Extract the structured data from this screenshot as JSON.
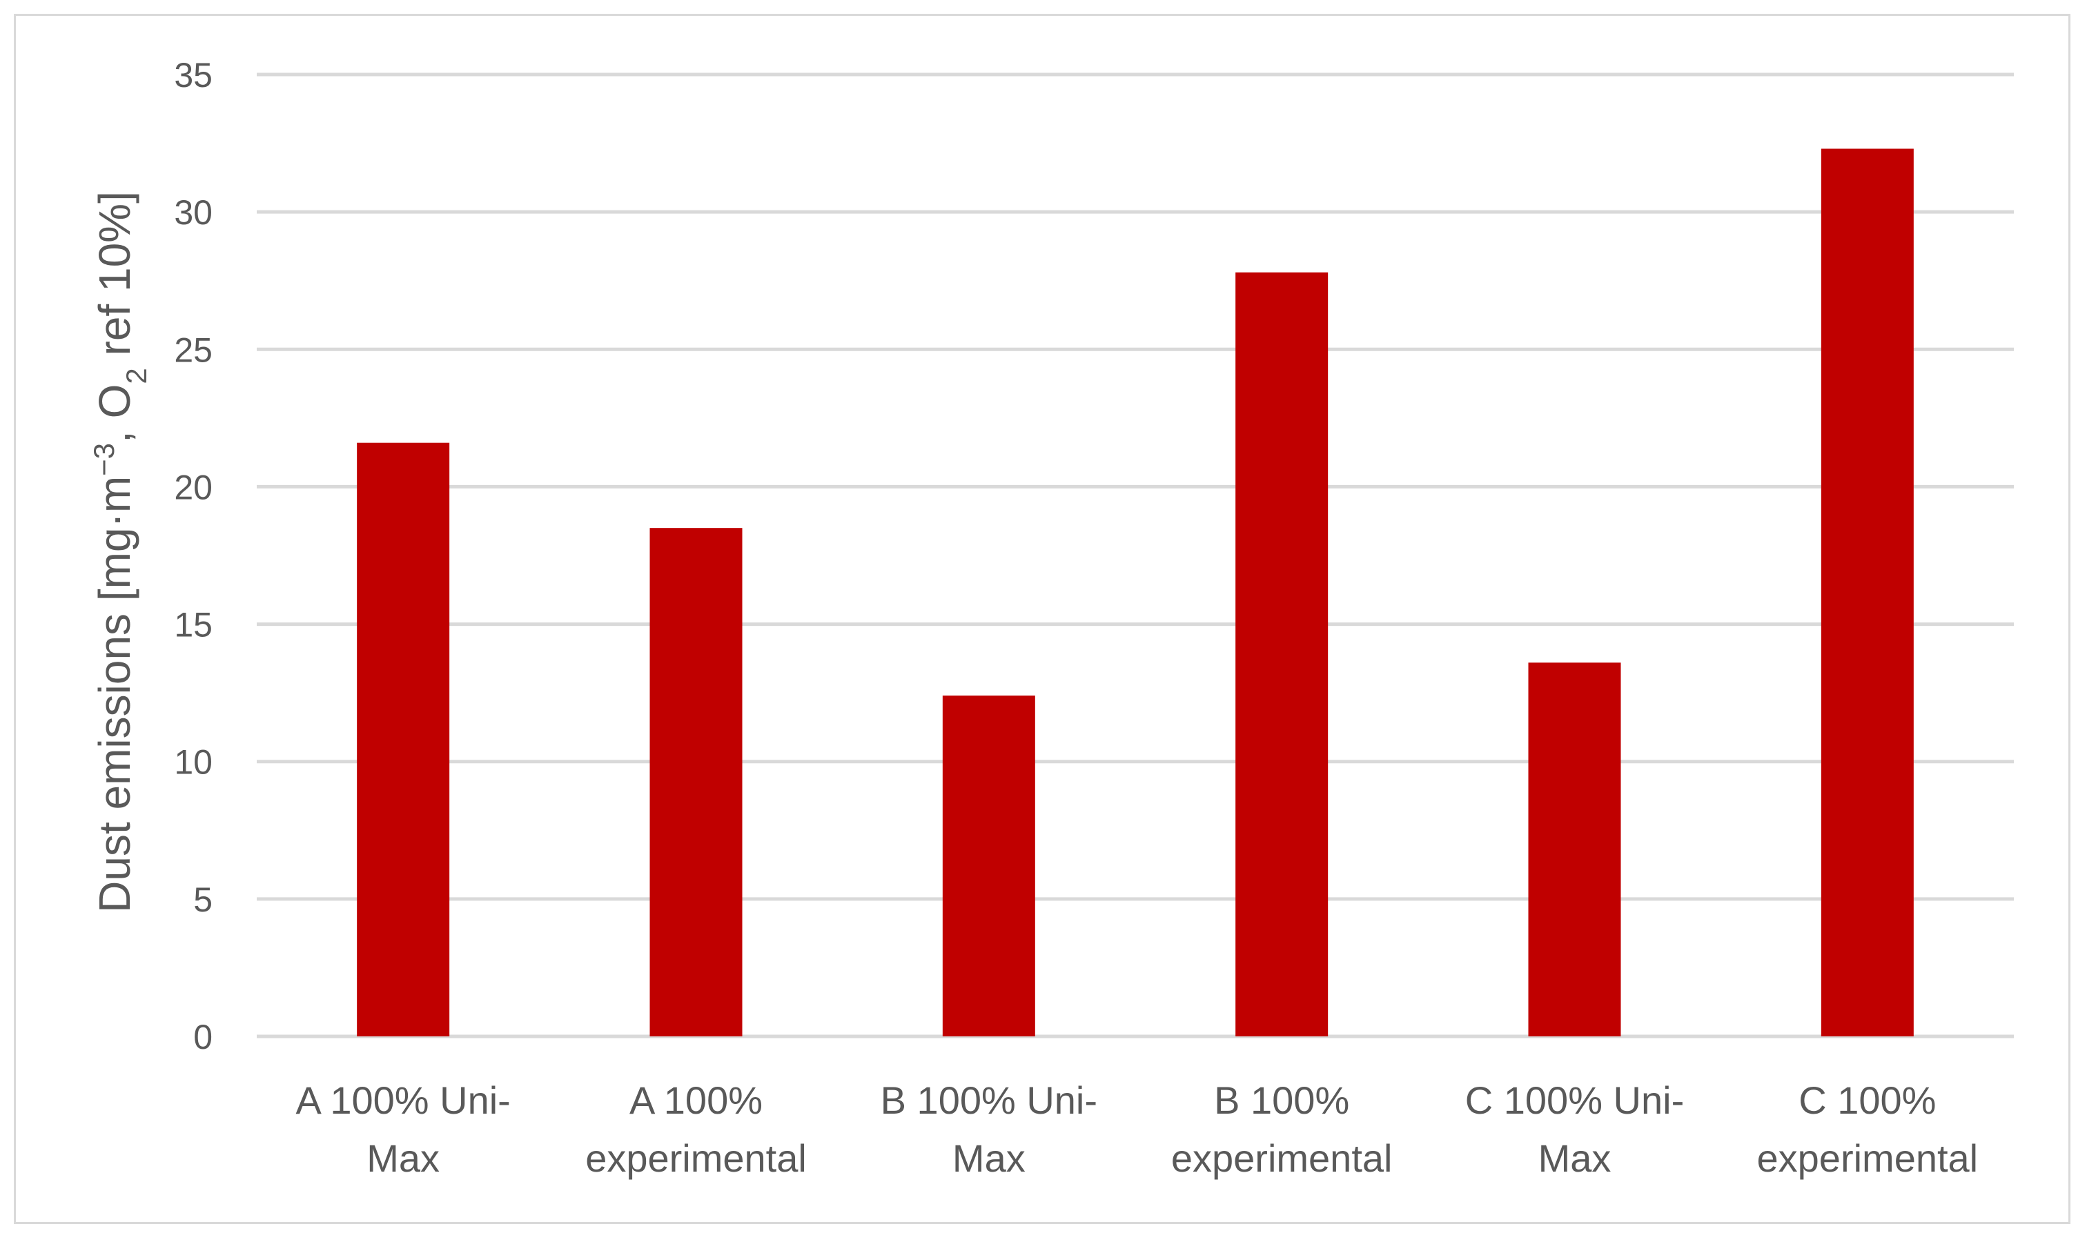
{
  "chart_data": {
    "type": "bar",
    "categories": [
      [
        "A 100% Uni-",
        "Max"
      ],
      [
        "A 100%",
        "experimental"
      ],
      [
        "B 100% Uni-",
        "Max"
      ],
      [
        "B 100%",
        "experimental"
      ],
      [
        "C 100% Uni-",
        "Max"
      ],
      [
        "C 100%",
        "experimental"
      ]
    ],
    "values": [
      21.6,
      18.5,
      12.4,
      27.8,
      13.6,
      32.3
    ],
    "ylabel": {
      "prefix": "Dust emissions [mg·m",
      "sup": "−3",
      "mid": ", O",
      "sub": "2",
      "suffix": " ref 10%]"
    },
    "ylim": [
      0,
      35
    ],
    "yticks": [
      0,
      5,
      10,
      15,
      20,
      25,
      30,
      35
    ],
    "bar_color": "#c00000",
    "grid": true
  }
}
